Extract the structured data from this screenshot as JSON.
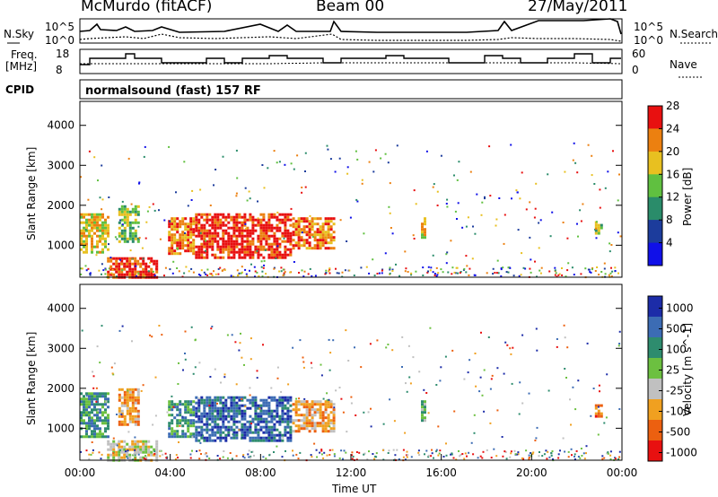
{
  "header": {
    "station": "McMurdo (fitACF)",
    "beam": "Beam 00",
    "date": "27/May/2011"
  },
  "top_panels": {
    "nsky_label": "N.Sky",
    "nsky_ticks": [
      "10^5",
      "10^0"
    ],
    "nsearch_label": "N.Search",
    "nsearch_ticks": [
      "10^5",
      "10^0"
    ],
    "freq_label_1": "Freq.",
    "freq_label_2": "[MHz]",
    "freq_ticks": [
      "18",
      "8"
    ],
    "nave_label": "Nave",
    "nave_ticks": [
      "60",
      "0"
    ],
    "cpid_label": "CPID",
    "cpid_value": "normalsound (fast) 157 RF"
  },
  "chart_data": [
    {
      "type": "heatmap",
      "name": "power",
      "ylabel": "Slant Range [km]",
      "yticks": [
        "1000",
        "2000",
        "3000",
        "4000"
      ],
      "ylim": [
        200,
        4600
      ],
      "xlim": [
        0,
        24
      ],
      "colorbar_label": "Power [dB]",
      "colorbar_ticks": [
        "4",
        "8",
        "12",
        "16",
        "20",
        "24",
        "28"
      ],
      "colors": [
        "#1010e8",
        "#1c3c9c",
        "#2a8c6a",
        "#60c040",
        "#e8c020",
        "#ec8010",
        "#e81010"
      ],
      "echo_regions": [
        {
          "t0": 0.0,
          "t1": 1.3,
          "r0": 800,
          "r1": 1800,
          "level": 4
        },
        {
          "t0": 1.7,
          "t1": 2.6,
          "r0": 1100,
          "r1": 2000,
          "level": 3
        },
        {
          "t0": 3.9,
          "t1": 5.0,
          "r0": 800,
          "r1": 1700,
          "level": 5
        },
        {
          "t0": 5.1,
          "t1": 9.3,
          "r0": 700,
          "r1": 1800,
          "level": 6
        },
        {
          "t0": 9.4,
          "t1": 11.2,
          "r0": 900,
          "r1": 1700,
          "level": 5
        },
        {
          "t0": 1.2,
          "t1": 3.4,
          "r0": 200,
          "r1": 700,
          "level": 6
        },
        {
          "t0": 15.1,
          "t1": 15.3,
          "r0": 1200,
          "r1": 1700,
          "level": 4
        },
        {
          "t0": 22.8,
          "t1": 23.1,
          "r0": 1300,
          "r1": 1600,
          "level": 3
        }
      ]
    },
    {
      "type": "heatmap",
      "name": "velocity",
      "ylabel": "Slant Range [km]",
      "yticks": [
        "1000",
        "2000",
        "3000",
        "4000"
      ],
      "ylim": [
        200,
        4600
      ],
      "xlim": [
        0,
        24
      ],
      "xticks": [
        "00:00",
        "04:00",
        "08:00",
        "12:00",
        "16:00",
        "20:00",
        "00:00"
      ],
      "xlabel": "Time UT",
      "colorbar_label": "Velocity [m s^-1]",
      "colorbar_ticks": [
        "1000",
        "500",
        "100",
        "25",
        "-25",
        "-100",
        "-500",
        "-1000"
      ],
      "colors": [
        "#1c2ca8",
        "#3c6cb4",
        "#2e8c6e",
        "#6cc040",
        "#c0c0c0",
        "#f0a020",
        "#ec6010",
        "#e81010"
      ],
      "echo_regions": [
        {
          "t0": 0.0,
          "t1": 1.3,
          "r0": 800,
          "r1": 1900,
          "level": 2
        },
        {
          "t0": 1.7,
          "t1": 2.6,
          "r0": 1100,
          "r1": 2000,
          "level": 5
        },
        {
          "t0": 3.9,
          "t1": 5.0,
          "r0": 800,
          "r1": 1700,
          "level": 2
        },
        {
          "t0": 5.1,
          "t1": 9.3,
          "r0": 700,
          "r1": 1800,
          "level": 1
        },
        {
          "t0": 9.4,
          "t1": 11.2,
          "r0": 900,
          "r1": 1700,
          "level": 5
        },
        {
          "t0": 1.2,
          "t1": 3.4,
          "r0": 200,
          "r1": 700,
          "level": 4
        },
        {
          "t0": 15.1,
          "t1": 15.3,
          "r0": 1200,
          "r1": 1700,
          "level": 3
        },
        {
          "t0": 22.8,
          "t1": 23.1,
          "r0": 1300,
          "r1": 1600,
          "level": 6
        }
      ]
    }
  ]
}
